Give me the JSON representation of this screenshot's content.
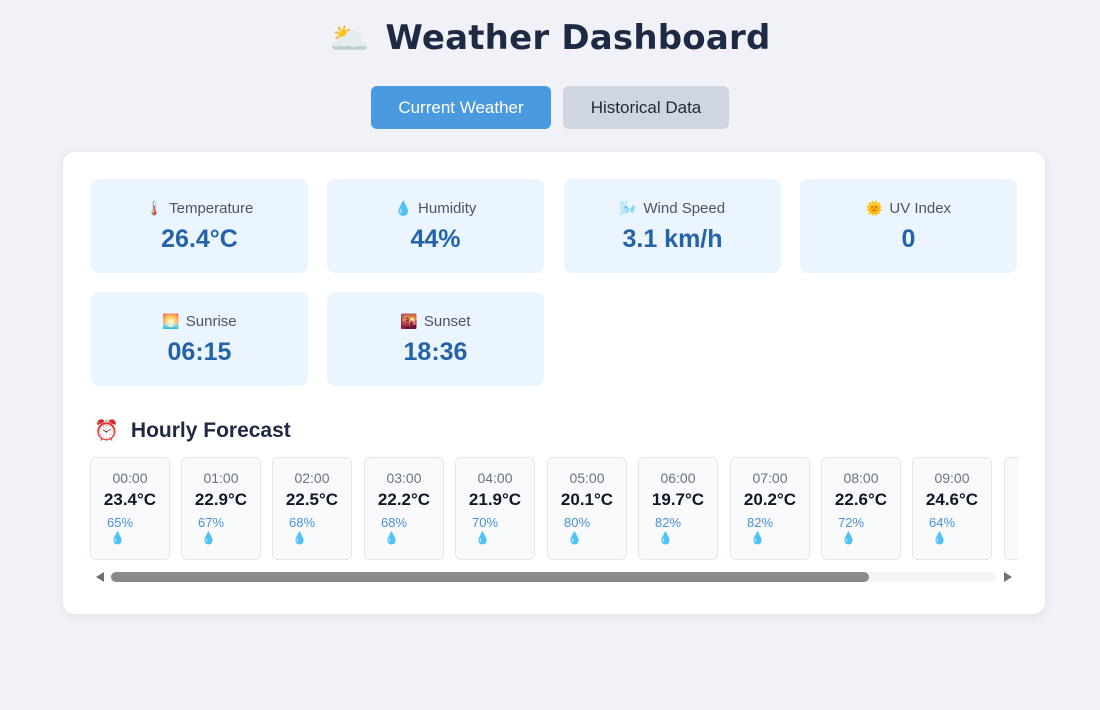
{
  "header": {
    "icon": "sun-behind-cloud-icon",
    "icon_glyph": "🌥️",
    "title": "Weather Dashboard"
  },
  "tabs": [
    {
      "label": "Current Weather",
      "active": true
    },
    {
      "label": "Historical Data",
      "active": false
    }
  ],
  "current": [
    {
      "icon": "thermometer-icon",
      "glyph": "🌡️",
      "label": "Temperature",
      "value": "26.4°C"
    },
    {
      "icon": "droplet-icon",
      "glyph": "💧",
      "label": "Humidity",
      "value": "44%"
    },
    {
      "icon": "wind-icon",
      "glyph": "🌬️",
      "label": "Wind Speed",
      "value": "3.1 km/h"
    },
    {
      "icon": "sun-icon",
      "glyph": "🌞",
      "label": "UV Index",
      "value": "0"
    },
    {
      "icon": "sunrise-icon",
      "glyph": "🌅",
      "label": "Sunrise",
      "value": "06:15"
    },
    {
      "icon": "sunset-icon",
      "glyph": "🌇",
      "label": "Sunset",
      "value": "18:36"
    }
  ],
  "forecast": {
    "icon": "alarm-clock-icon",
    "icon_glyph": "⏰",
    "title": "Hourly Forecast",
    "drop_glyph": "💧",
    "hours": [
      {
        "time": "00:00",
        "temp": "23.4°C",
        "humidity": "65%"
      },
      {
        "time": "01:00",
        "temp": "22.9°C",
        "humidity": "67%"
      },
      {
        "time": "02:00",
        "temp": "22.5°C",
        "humidity": "68%"
      },
      {
        "time": "03:00",
        "temp": "22.2°C",
        "humidity": "68%"
      },
      {
        "time": "04:00",
        "temp": "21.9°C",
        "humidity": "70%"
      },
      {
        "time": "05:00",
        "temp": "20.1°C",
        "humidity": "80%"
      },
      {
        "time": "06:00",
        "temp": "19.7°C",
        "humidity": "82%"
      },
      {
        "time": "07:00",
        "temp": "20.2°C",
        "humidity": "82%"
      },
      {
        "time": "08:00",
        "temp": "22.6°C",
        "humidity": "72%"
      },
      {
        "time": "09:00",
        "temp": "24.6°C",
        "humidity": "64%"
      }
    ]
  },
  "colors": {
    "accent": "#4a9ae0",
    "card_bg": "#eaf5ff",
    "value": "#2563a8",
    "page_bg": "#f0f2f8"
  }
}
